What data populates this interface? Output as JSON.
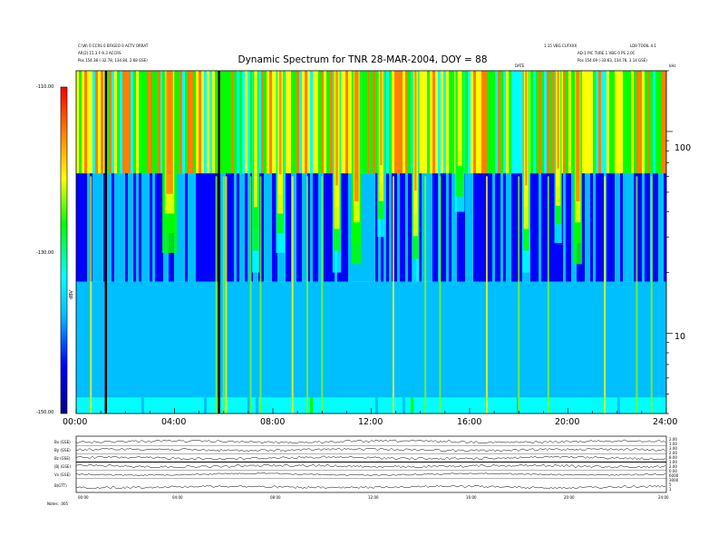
{
  "header": {
    "title": "Dynamic Spectrum for TNR 28-MAR-2004, DOY = 88",
    "left_line1": "C:\\W\\ 0 CCRS 0 BFIGEO 0 ACTV ORRAT",
    "left_line2": "AR(2) 15.3 F-9.3 ACCRS",
    "left_pos": "Pos 154.38 (-32.78, 134.84, 2.68 GSE)",
    "right_line1": "1.15 VBG CUFXXX",
    "right_line1b": "LD9 TOOIL 4.1",
    "right_line2": "AD-1 PIC TURE 1 VBG 0 PS 2.0C",
    "right_pos": "Pos 154.69 (-33.63, 134.78, 3.14 GSE)",
    "mid_small": "DATE",
    "right_small": "kHz"
  },
  "colorbar": {
    "ticks": [
      "-110.00",
      "-130.00",
      "-150.00"
    ],
    "axis_label": "dBV"
  },
  "bottom": {
    "panel_labels": [
      "Bx (GSE)",
      "By (GSE)",
      "Bz (GSE)",
      "|B| (GSE)",
      "Vx (GSE)",
      "B(GTT)"
    ],
    "right_values": [
      "2.00",
      "1.00",
      "3.00",
      "2.00",
      "8.00",
      "1.00",
      "2.00",
      "0.00",
      "6000",
      "3000",
      "5",
      "1"
    ],
    "xticks": [
      "00:00",
      "04:00",
      "08:00",
      "12:00",
      "16:00",
      "20:00",
      "24:00"
    ],
    "footer": "Notes: .005"
  },
  "chart_data": {
    "type": "heatmap",
    "title": "Dynamic Spectrum for TNR 28-MAR-2004, DOY = 88",
    "xlabel": "",
    "ylabel": "kHz",
    "x_ticks": [
      "00:00",
      "04:00",
      "08:00",
      "12:00",
      "16:00",
      "20:00",
      "24:00"
    ],
    "x_range_hours": [
      0,
      24
    ],
    "y_scale": "log",
    "y_range_khz": [
      4,
      200
    ],
    "y_ticks": [
      10,
      100
    ],
    "color_scale_db": [
      -150,
      -110
    ],
    "colorbar_ticks": [
      -110,
      -130,
      -150
    ],
    "colormap": [
      "#00008b",
      "#0000ff",
      "#00bfff",
      "#00ffff",
      "#00ff00",
      "#ffff00",
      "#ff8000",
      "#ff0000"
    ],
    "bands": [
      {
        "name": "high",
        "y_khz": [
          62,
          200
        ],
        "level": 0.72
      },
      {
        "name": "mid",
        "y_khz": [
          18,
          62
        ],
        "level": 0.28
      },
      {
        "name": "low",
        "y_khz": [
          4.8,
          18
        ],
        "level": 0.42
      },
      {
        "name": "floor",
        "y_khz": [
          4,
          4.8
        ],
        "level": 0.5
      }
    ],
    "bursts": [
      {
        "t": 3.8,
        "y_khz": [
          25,
          200
        ],
        "level": 1.0,
        "width_h": 0.6
      },
      {
        "t": 7.3,
        "y_khz": [
          20,
          200
        ],
        "level": 0.85,
        "width_h": 0.3
      },
      {
        "t": 8.3,
        "y_khz": [
          25,
          200
        ],
        "level": 0.95,
        "width_h": 0.35
      },
      {
        "t": 10.6,
        "y_khz": [
          20,
          200
        ],
        "level": 0.9,
        "width_h": 0.35
      },
      {
        "t": 11.4,
        "y_khz": [
          22,
          200
        ],
        "level": 1.0,
        "width_h": 0.4
      },
      {
        "t": 12.4,
        "y_khz": [
          30,
          200
        ],
        "level": 0.9,
        "width_h": 0.3
      },
      {
        "t": 13.8,
        "y_khz": [
          18,
          200
        ],
        "level": 0.9,
        "width_h": 0.3
      },
      {
        "t": 15.6,
        "y_khz": [
          40,
          200
        ],
        "level": 0.85,
        "width_h": 0.4
      },
      {
        "t": 18.3,
        "y_khz": [
          20,
          200
        ],
        "level": 0.95,
        "width_h": 0.3
      },
      {
        "t": 19.6,
        "y_khz": [
          28,
          200
        ],
        "level": 0.9,
        "width_h": 0.3
      },
      {
        "t": 20.4,
        "y_khz": [
          22,
          200
        ],
        "level": 1.0,
        "width_h": 0.35
      }
    ],
    "spikes_hours": [
      0.6,
      5.7,
      6.0,
      6.1,
      7.1,
      7.5,
      8.8,
      9.4,
      10.0,
      12.9,
      14.2,
      14.8,
      16.7,
      18.0,
      19.2,
      21.5,
      22.8,
      23.4
    ],
    "data_gaps_hours": [
      1.2,
      5.8
    ]
  }
}
